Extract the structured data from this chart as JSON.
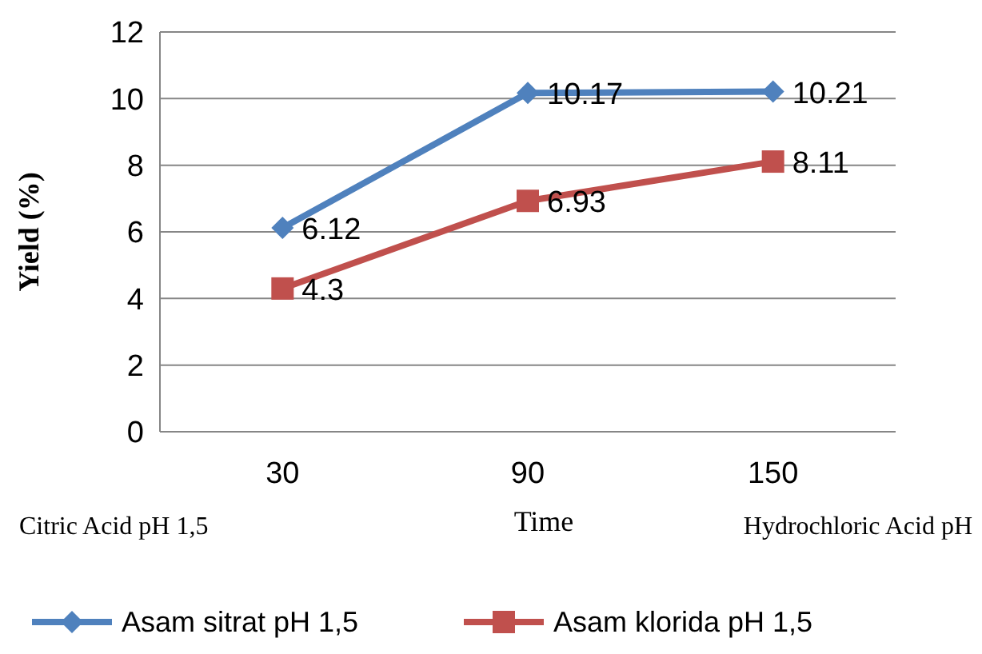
{
  "chart_data": {
    "type": "line",
    "xlabel": "Time",
    "ylabel": "Yield (%)",
    "categories": [
      "30",
      "90",
      "150"
    ],
    "series": [
      {
        "name": "Asam sitrat pH 1,5",
        "color": "#4f81bd",
        "marker": "diamond",
        "values": [
          6.12,
          10.17,
          10.21
        ]
      },
      {
        "name": "Asam klorida pH 1,5",
        "color": "#c0504d",
        "marker": "square",
        "values": [
          4.3,
          6.93,
          8.11
        ]
      }
    ],
    "ylim": [
      0,
      12
    ],
    "yticks": [
      0,
      2,
      4,
      6,
      8,
      10,
      12
    ],
    "grid": "y",
    "data_labels": true,
    "legend": "bottom",
    "annotations": [
      "Citric Acid pH 1,5",
      "Hydrochloric Acid pH"
    ]
  }
}
